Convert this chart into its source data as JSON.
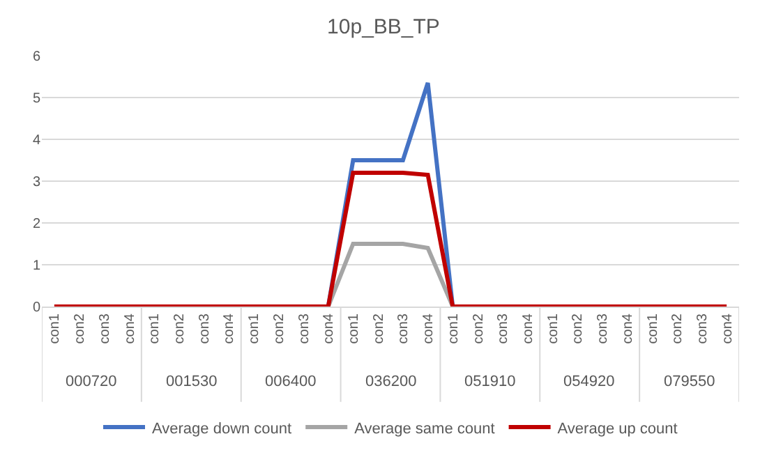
{
  "chart_data": {
    "type": "line",
    "title": "10p_BB_TP",
    "categories": [
      "con1",
      "con2",
      "con3",
      "con4",
      "con1",
      "con2",
      "con3",
      "con4",
      "con1",
      "con2",
      "con3",
      "con4",
      "con1",
      "con2",
      "con3",
      "con4",
      "con1",
      "con2",
      "con3",
      "con4",
      "con1",
      "con2",
      "con3",
      "con4",
      "con1",
      "con2",
      "con3",
      "con4"
    ],
    "annotations": [
      "000720",
      "001530",
      "006400",
      "036200",
      "051910",
      "054920",
      "079550"
    ],
    "series": [
      {
        "name": "Average down count",
        "color": "#4472c4",
        "values": [
          null,
          null,
          null,
          null,
          null,
          null,
          null,
          null,
          null,
          null,
          null,
          0,
          3.5,
          3.5,
          3.5,
          5.35,
          0,
          null,
          null,
          null,
          null,
          null,
          null,
          null,
          null,
          null,
          null,
          null
        ]
      },
      {
        "name": "Average same count",
        "color": "#a5a5a5",
        "values": [
          null,
          null,
          null,
          null,
          null,
          null,
          null,
          null,
          null,
          null,
          null,
          0,
          1.5,
          1.5,
          1.5,
          1.4,
          0,
          null,
          null,
          null,
          null,
          null,
          null,
          null,
          null,
          null,
          null,
          null
        ]
      },
      {
        "name": "Average up count",
        "color": "#c00000",
        "values": [
          0,
          0,
          0,
          0,
          0,
          0,
          0,
          0,
          0,
          0,
          0,
          0,
          3.2,
          3.2,
          3.2,
          3.15,
          0,
          0,
          0,
          0,
          0,
          0,
          0,
          0,
          0,
          0,
          0,
          0
        ]
      }
    ],
    "ylim": [
      0,
      6
    ],
    "yticks": [
      0,
      1,
      2,
      3,
      4,
      5,
      6
    ],
    "grid": "y",
    "legend": "bottom",
    "marker": "none",
    "line_style": "solid"
  }
}
